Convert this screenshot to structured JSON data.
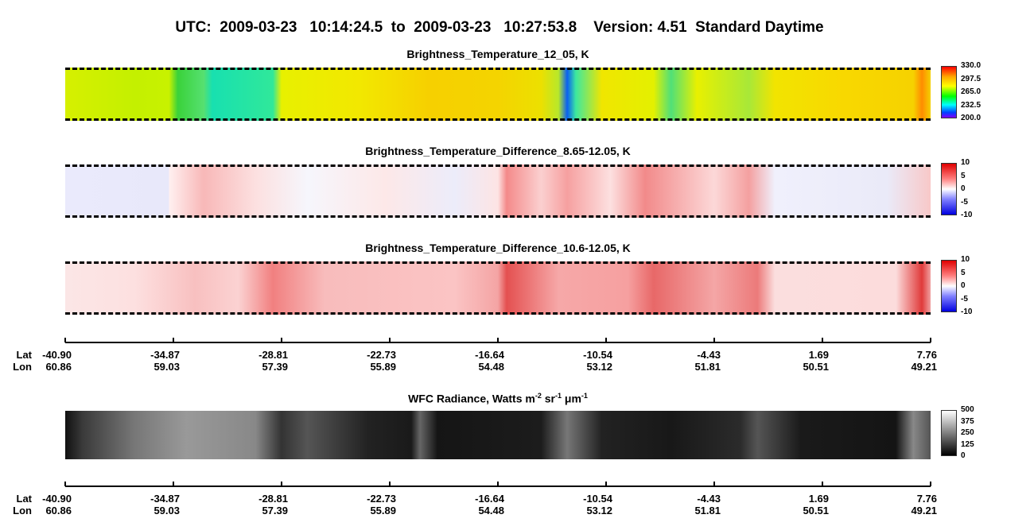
{
  "title": "UTC:  2009-03-23   10:14:24.5  to  2009-03-23   10:27:53.8    Version: 4.51  Standard Daytime",
  "panels": [
    {
      "title": "Brightness_Temperature_12_05, K",
      "colorbar_labels": [
        "330.0",
        "297.5",
        "265.0",
        "232.5",
        "200.0"
      ]
    },
    {
      "title": "Brightness_Temperature_Difference_8.65-12.05, K",
      "colorbar_labels": [
        "10",
        "5",
        "0",
        "-5",
        "-10"
      ]
    },
    {
      "title": "Brightness_Temperature_Difference_10.6-12.05, K",
      "colorbar_labels": [
        "10",
        "5",
        "0",
        "-5",
        "-10"
      ]
    }
  ],
  "wfc": {
    "title_parts": [
      "WFC Radiance, Watts m",
      "-2",
      " sr",
      "-1",
      " μm",
      "-1"
    ],
    "colorbar_labels": [
      "500",
      "375",
      "250",
      "125",
      "0"
    ]
  },
  "axes": [
    {
      "lat_label": "Lat",
      "lon_label": "Lon",
      "lat": [
        "-40.90",
        "-34.87",
        "-28.81",
        "-22.73",
        "-16.64",
        "-10.54",
        "-4.43",
        "1.69",
        "7.76"
      ],
      "lon": [
        "60.86",
        "59.03",
        "57.39",
        "55.89",
        "54.48",
        "53.12",
        "51.81",
        "50.51",
        "49.21"
      ]
    },
    {
      "lat_label": "Lat",
      "lon_label": "Lon",
      "lat": [
        "-40.90",
        "-34.87",
        "-28.81",
        "-22.73",
        "-16.64",
        "-10.54",
        "-4.43",
        "1.69",
        "7.76"
      ],
      "lon": [
        "60.86",
        "59.03",
        "57.39",
        "55.89",
        "54.48",
        "53.12",
        "51.81",
        "50.51",
        "49.21"
      ]
    }
  ]
}
